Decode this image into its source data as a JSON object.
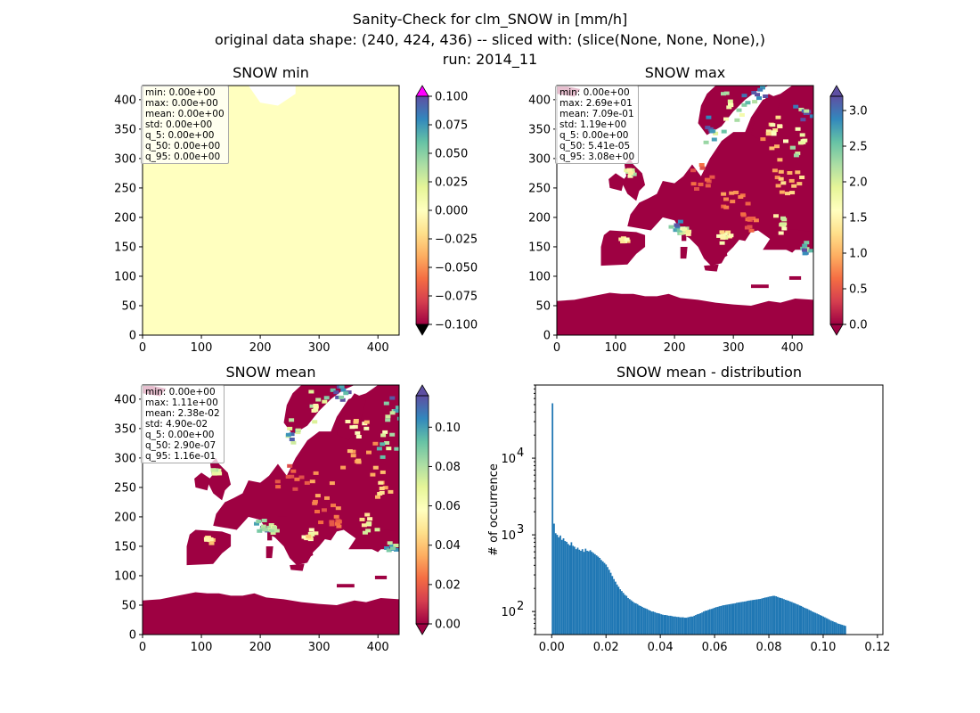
{
  "figure": {
    "title_lines": [
      "Sanity-Check for clm_SNOW in [mm/h]",
      "original data shape: (240, 424, 436) -- sliced with: (slice(None, None, None),)",
      "run: 2014_11"
    ]
  },
  "colormap": {
    "name": "Spectral",
    "stops": [
      "#9e0142",
      "#d53e4f",
      "#f46d43",
      "#fdae61",
      "#fee08b",
      "#ffffbf",
      "#e6f598",
      "#abdda4",
      "#66c2a5",
      "#3288bd",
      "#5e4fa2"
    ],
    "over_color": "#ff00ff",
    "under_color": "#000000"
  },
  "chart_data": [
    {
      "type": "heatmap",
      "title": "SNOW min",
      "xlim": [
        0,
        436
      ],
      "ylim": [
        0,
        424
      ],
      "xticks": [
        0,
        100,
        200,
        300,
        400
      ],
      "yticks": [
        0,
        50,
        100,
        150,
        200,
        250,
        300,
        350,
        400
      ],
      "colorbar": {
        "ticks": [
          -0.1,
          -0.075,
          -0.05,
          -0.025,
          0.0,
          0.025,
          0.05,
          0.075,
          0.1
        ],
        "tick_labels": [
          "−0.100",
          "−0.075",
          "−0.050",
          "−0.025",
          "0.000",
          "0.025",
          "0.050",
          "0.075",
          "0.100"
        ],
        "range": [
          -0.1,
          0.1
        ],
        "extend": "both"
      },
      "stats": [
        "min: 0.00e+00",
        "max: 0.00e+00",
        "mean: 0.00e+00",
        "std: 0.00e+00",
        "q_5: 0.00e+00",
        "q_50: 0.00e+00",
        "q_95: 0.00e+00"
      ],
      "field_value": 0.0
    },
    {
      "type": "heatmap",
      "title": "SNOW max",
      "xlim": [
        0,
        436
      ],
      "ylim": [
        0,
        424
      ],
      "xticks": [
        0,
        100,
        200,
        300,
        400
      ],
      "yticks": [
        0,
        50,
        100,
        150,
        200,
        250,
        300,
        350,
        400
      ],
      "colorbar": {
        "ticks": [
          0.0,
          0.5,
          1.0,
          1.5,
          2.0,
          2.5,
          3.0
        ],
        "tick_labels": [
          "0.0",
          "0.5",
          "1.0",
          "1.5",
          "2.0",
          "2.5",
          "3.0"
        ],
        "range": [
          0,
          3.2
        ],
        "extend": "both"
      },
      "stats": [
        "min: 0.00e+00",
        "max: 2.69e+01",
        "mean: 7.09e-01",
        "std: 1.19e+00",
        "q_5: 0.00e+00",
        "q_50: 5.41e-05",
        "q_95: 3.08e+00"
      ]
    },
    {
      "type": "heatmap",
      "title": "SNOW mean",
      "xlim": [
        0,
        436
      ],
      "ylim": [
        0,
        424
      ],
      "xticks": [
        0,
        100,
        200,
        300,
        400
      ],
      "yticks": [
        0,
        50,
        100,
        150,
        200,
        250,
        300,
        350,
        400
      ],
      "colorbar": {
        "ticks": [
          0.0,
          0.02,
          0.04,
          0.06,
          0.08,
          0.1
        ],
        "tick_labels": [
          "0.00",
          "0.02",
          "0.04",
          "0.06",
          "0.08",
          "0.10"
        ],
        "range": [
          0,
          0.116
        ],
        "extend": "both"
      },
      "stats": [
        "min: 0.00e+00",
        "max: 1.11e+00",
        "mean: 2.38e-02",
        "std: 4.90e-02",
        "q_5: 0.00e+00",
        "q_50: 2.90e-07",
        "q_95: 1.16e-01"
      ]
    },
    {
      "type": "bar",
      "title": "SNOW mean - distribution",
      "ylabel": "# of occurrence",
      "xlabel": "",
      "yscale": "log",
      "xlim": [
        -0.006,
        0.122
      ],
      "ylim": [
        50,
        90000
      ],
      "xticks": [
        0.0,
        0.02,
        0.04,
        0.06,
        0.08,
        0.1,
        0.12
      ],
      "xtick_labels": [
        "0.00",
        "0.02",
        "0.04",
        "0.06",
        "0.08",
        "0.10",
        "0.12"
      ],
      "yticks": [
        100,
        1000,
        10000
      ],
      "ytick_labels": [
        "10^2",
        "10^3",
        "10^4"
      ],
      "bar_color": "#1f77b4",
      "bin_start": 0.0,
      "bin_width": 0.00058,
      "counts": [
        52000,
        1400,
        1050,
        1000,
        930,
        980,
        860,
        900,
        830,
        810,
        760,
        730,
        800,
        720,
        700,
        650,
        680,
        640,
        620,
        650,
        600,
        660,
        620,
        610,
        630,
        600,
        580,
        560,
        540,
        520,
        500,
        470,
        450,
        430,
        410,
        380,
        350,
        320,
        290,
        265,
        245,
        225,
        210,
        195,
        185,
        175,
        165,
        160,
        150,
        145,
        140,
        135,
        130,
        128,
        125,
        120,
        118,
        115,
        112,
        110,
        108,
        105,
        103,
        100,
        100,
        98,
        96,
        95,
        94,
        92,
        91,
        90,
        90,
        89,
        88,
        88,
        87,
        86,
        86,
        85,
        85,
        84,
        84,
        84,
        83,
        83,
        84,
        85,
        86,
        86,
        88,
        90,
        92,
        93,
        95,
        97,
        100,
        102,
        103,
        105,
        107,
        108,
        110,
        112,
        114,
        115,
        117,
        118,
        120,
        121,
        122,
        123,
        124,
        125,
        126,
        127,
        128,
        130,
        131,
        132,
        133,
        134,
        135,
        136,
        138,
        139,
        140,
        141,
        142,
        143,
        144,
        145,
        146,
        148,
        150,
        152,
        153,
        155,
        157,
        158,
        160,
        160,
        158,
        155,
        152,
        150,
        148,
        145,
        142,
        140,
        138,
        135,
        133,
        130,
        128,
        125,
        123,
        120,
        118,
        115,
        112,
        110,
        108,
        105,
        103,
        100,
        98,
        96,
        94,
        92,
        90,
        88,
        86,
        84,
        82,
        80,
        78,
        76,
        75,
        73,
        72,
        70,
        69,
        68,
        67,
        66,
        65
      ]
    }
  ]
}
